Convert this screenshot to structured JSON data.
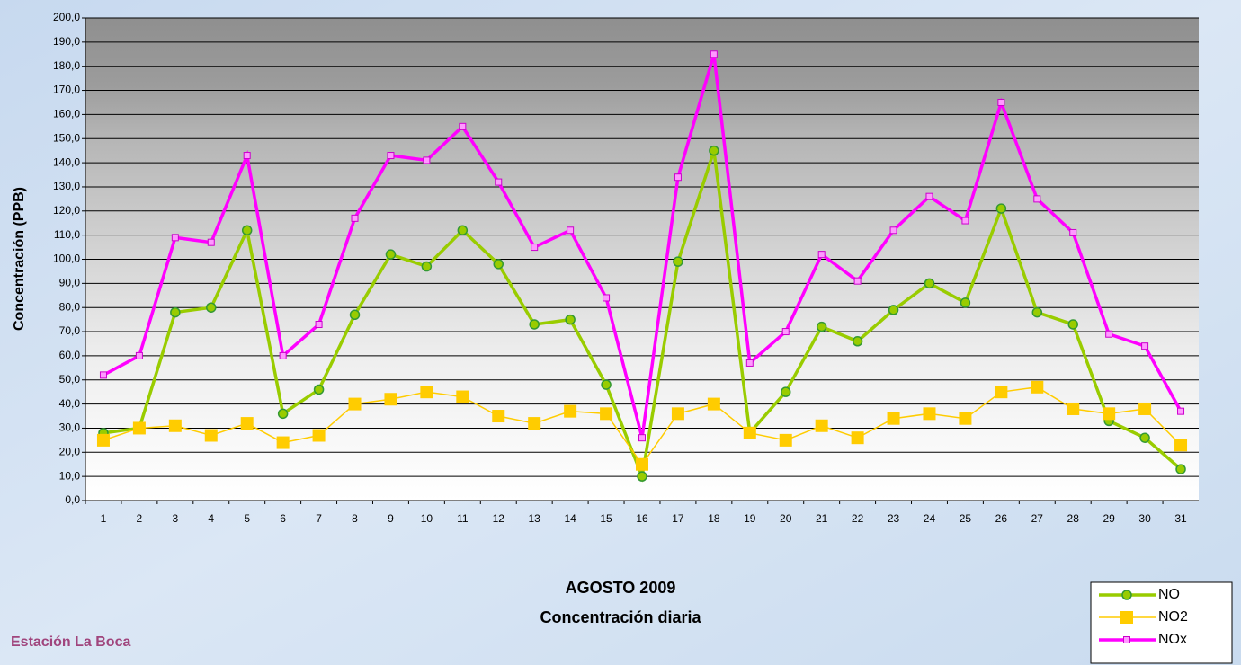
{
  "chart_data": {
    "type": "line",
    "title": "AGOSTO 2009",
    "subtitle": "Concentración diaria",
    "ylabel": "Concentración  (PPB)",
    "footer": "Estación La Boca",
    "categories": [
      "1",
      "2",
      "3",
      "4",
      "5",
      "6",
      "7",
      "8",
      "9",
      "10",
      "11",
      "12",
      "13",
      "14",
      "15",
      "16",
      "17",
      "18",
      "19",
      "20",
      "21",
      "22",
      "23",
      "24",
      "25",
      "26",
      "27",
      "28",
      "29",
      "30",
      "31"
    ],
    "series": [
      {
        "name": "NO",
        "color": "#99cc00",
        "marker": "circle",
        "values": [
          28,
          30,
          78,
          80,
          112,
          36,
          46,
          77,
          102,
          97,
          112,
          98,
          73,
          75,
          48,
          10,
          99,
          145,
          28,
          45,
          72,
          66,
          79,
          90,
          82,
          121,
          78,
          73,
          33,
          26,
          13
        ]
      },
      {
        "name": "NO2",
        "color": "#ffcc00",
        "marker": "square",
        "values": [
          25,
          30,
          31,
          27,
          32,
          24,
          27,
          40,
          42,
          45,
          43,
          35,
          32,
          37,
          36,
          15,
          36,
          40,
          28,
          25,
          31,
          26,
          34,
          36,
          34,
          45,
          47,
          38,
          36,
          38,
          23
        ]
      },
      {
        "name": "NOx",
        "color": "#ff00ff",
        "marker": "square-small",
        "values": [
          52,
          60,
          109,
          107,
          143,
          60,
          73,
          117,
          143,
          141,
          155,
          132,
          105,
          112,
          84,
          26,
          134,
          185,
          57,
          70,
          102,
          91,
          112,
          126,
          116,
          165,
          125,
          111,
          69,
          64,
          37
        ]
      }
    ],
    "ylim": [
      0,
      200
    ],
    "yticks": [
      {
        "value": 0,
        "label": "0,0"
      },
      {
        "value": 10,
        "label": "10,0"
      },
      {
        "value": 20,
        "label": "20,0"
      },
      {
        "value": 30,
        "label": "30,0"
      },
      {
        "value": 40,
        "label": "40,0"
      },
      {
        "value": 50,
        "label": "50,0"
      },
      {
        "value": 60,
        "label": "60,0"
      },
      {
        "value": 70,
        "label": "70,0"
      },
      {
        "value": 80,
        "label": "80,0"
      },
      {
        "value": 90,
        "label": "90,0"
      },
      {
        "value": 100,
        "label": "100,0"
      },
      {
        "value": 110,
        "label": "110,0"
      },
      {
        "value": 120,
        "label": "120,0"
      },
      {
        "value": 130,
        "label": "130,0"
      },
      {
        "value": 140,
        "label": "140,0"
      },
      {
        "value": 150,
        "label": "150,0"
      },
      {
        "value": 160,
        "label": "160,0"
      },
      {
        "value": 170,
        "label": "170,0"
      },
      {
        "value": 180,
        "label": "180,0"
      },
      {
        "value": 190,
        "label": "190,0"
      },
      {
        "value": 200,
        "label": "200,0"
      }
    ],
    "grid": true,
    "legend": "bottom-right"
  }
}
